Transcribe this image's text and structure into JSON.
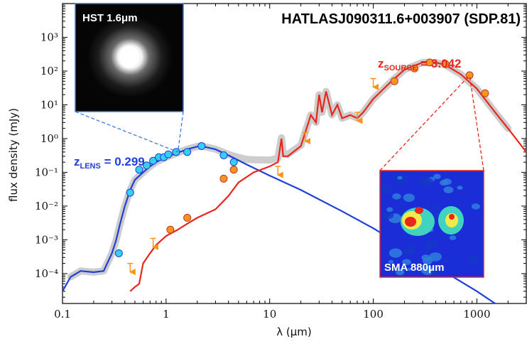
{
  "chart_data": {
    "type": "line",
    "title": "HATLASJ090311.6+003907 (SDP.81)",
    "xlabel": "λ (μm)",
    "ylabel": "flux density (mJy)",
    "xscale": "log",
    "yscale": "log",
    "xlim": [
      0.1,
      3000
    ],
    "ylim": [
      1.3e-05,
      10000
    ],
    "x_ticks": [
      "0.1",
      "1",
      "10",
      "100",
      "1000"
    ],
    "y_ticks": [
      "10⁻⁴",
      "10⁻³",
      "10⁻²",
      "10⁻¹",
      "10⁰",
      "10¹",
      "10²",
      "10³"
    ],
    "colors": {
      "lens": "#1f3fd9",
      "source": "#e8261c",
      "total": "#c8c8c8",
      "lens_points": "#35d0f0",
      "source_points": "#f7941d"
    },
    "series": [
      {
        "id": "lens_model",
        "color": "#1f3fd9",
        "x": [
          0.1,
          0.12,
          0.15,
          0.2,
          0.25,
          0.3,
          0.33,
          0.36,
          0.4,
          0.45,
          0.5,
          0.6,
          0.7,
          0.8,
          1.0,
          1.3,
          1.6,
          2.0,
          2.3,
          3.0,
          4.0,
          6.0,
          10,
          20,
          50,
          100,
          300,
          1000,
          1500
        ],
        "y": [
          3e-05,
          8e-05,
          0.00012,
          0.00011,
          0.00012,
          0.0004,
          0.001,
          0.003,
          0.01,
          0.03,
          0.06,
          0.1,
          0.15,
          0.2,
          0.28,
          0.38,
          0.48,
          0.58,
          0.58,
          0.48,
          0.32,
          0.17,
          0.08,
          0.03,
          0.007,
          0.0022,
          0.00028,
          3e-05,
          1.3e-05
        ]
      },
      {
        "id": "source_model",
        "color": "#e8261c",
        "x": [
          0.45,
          0.5,
          0.55,
          0.6,
          0.7,
          0.8,
          1.0,
          1.3,
          1.6,
          2.0,
          3.0,
          4.0,
          5.0,
          7.0,
          10,
          12,
          13,
          13.5,
          15,
          20,
          25,
          28,
          30,
          32,
          35,
          40,
          45,
          50,
          60,
          70,
          80,
          100,
          150,
          200,
          300,
          400,
          500,
          700,
          1000,
          1500,
          2000,
          3000
        ],
        "y": [
          3e-05,
          4e-05,
          5e-05,
          0.0002,
          0.0004,
          0.0007,
          0.0013,
          0.002,
          0.003,
          0.0045,
          0.008,
          0.02,
          0.05,
          0.1,
          0.15,
          0.2,
          1.0,
          0.3,
          0.3,
          0.6,
          5,
          3,
          20,
          6,
          25,
          5,
          10,
          4,
          5,
          4,
          6,
          15,
          50,
          110,
          180,
          180,
          150,
          80,
          30,
          6,
          2,
          0.4
        ]
      }
    ],
    "lens_photometry": {
      "x": [
        0.35,
        0.45,
        0.55,
        0.65,
        0.75,
        0.85,
        0.95,
        1.05,
        1.25,
        1.6,
        2.2,
        3.6,
        4.5
      ],
      "y": [
        0.0004,
        0.025,
        0.12,
        0.16,
        0.22,
        0.28,
        0.28,
        0.34,
        0.4,
        0.4,
        0.6,
        0.32,
        0.2
      ]
    },
    "source_photometry": {
      "x": [
        1.1,
        1.6,
        3.6,
        4.5,
        160,
        250,
        350,
        500,
        850,
        1200
      ],
      "y": [
        0.002,
        0.0045,
        0.065,
        0.12,
        50,
        120,
        180,
        160,
        75,
        22
      ]
    },
    "upper_limits": {
      "x": [
        0.45,
        0.75,
        12,
        22,
        70,
        100
      ],
      "y": [
        0.0002,
        0.0011,
        0.15,
        1.5,
        6,
        60
      ]
    },
    "annotations": {
      "lens_label": {
        "main": "z",
        "sub": "LENS",
        "value": " = 0.299"
      },
      "source_label": {
        "main": "z",
        "sub": "SOURCE",
        "value": " = 3.042"
      }
    },
    "insets": [
      {
        "id": "hst",
        "label": "HST 1.6μm",
        "anchor_x": 1.3,
        "anchor_y": 0.4
      },
      {
        "id": "sma",
        "label": "SMA 880μm",
        "anchor_x": 850,
        "anchor_y": 75
      }
    ]
  }
}
